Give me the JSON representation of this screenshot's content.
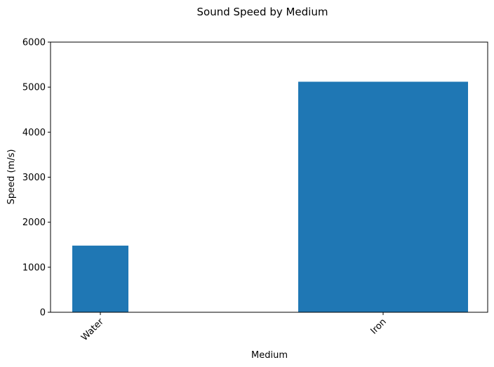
{
  "chart_data": {
    "type": "bar",
    "title": "Sound Speed by Medium",
    "xlabel": "Medium",
    "ylabel": "Speed (m/s)",
    "categories": [
      "Water",
      "Iron"
    ],
    "values": [
      1480,
      5120
    ],
    "ylim": [
      0,
      6000
    ],
    "yticks": [
      0,
      1000,
      2000,
      3000,
      4000,
      5000,
      6000
    ],
    "bar_color": "#1f77b4",
    "grid": false,
    "legend": "none"
  }
}
